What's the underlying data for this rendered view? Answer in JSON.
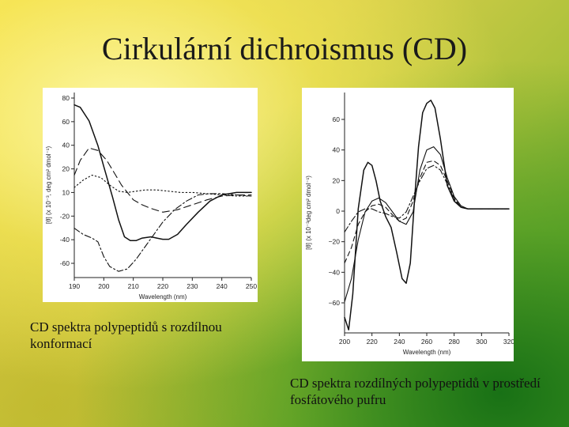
{
  "slide": {
    "title": "Cirkulární dichroismus (CD)",
    "caption_left": "CD spektra polypeptidů s rozdílnou konformací",
    "caption_right": "CD spektra rozdílných polypeptidů v prostředí fosfátového pufru"
  },
  "colors": {
    "background_light": "#f3de52",
    "background_dark": "#4e9b2a",
    "plot_background": "#ffffff",
    "line": "#111111"
  },
  "chart_data": [
    {
      "type": "line",
      "xlabel": "Wavelength (nm)",
      "ylabel": "[θ] (x 10⁻³, deg cm² dmol⁻¹)",
      "xlim": [
        190,
        250
      ],
      "ylim": [
        -65,
        85
      ],
      "xticks": [
        "190",
        "200",
        "210",
        "220",
        "230",
        "240",
        "250"
      ],
      "yticks": [
        "80",
        "60",
        "40",
        "20",
        "10",
        "-20",
        "-40",
        "-60"
      ],
      "series": [
        {
          "style": "solid",
          "x": [
            190,
            192,
            195,
            198,
            200,
            203,
            205,
            207,
            209,
            211,
            213,
            216,
            218,
            220,
            222,
            225,
            228,
            232,
            236,
            240,
            245,
            250
          ],
          "y": [
            75,
            73,
            62,
            42,
            25,
            0,
            -18,
            -32,
            -35,
            -35,
            -33,
            -32,
            -33,
            -34,
            -34,
            -30,
            -22,
            -12,
            -3,
            2,
            4,
            4
          ]
        },
        {
          "style": "long-dash",
          "x": [
            190,
            192,
            195,
            198,
            201,
            204,
            206,
            208,
            210,
            213,
            216,
            220,
            225,
            230,
            235,
            240,
            245,
            250
          ],
          "y": [
            18,
            30,
            40,
            38,
            30,
            18,
            10,
            4,
            -2,
            -6,
            -9,
            -12,
            -10,
            -6,
            -2,
            1,
            2,
            2
          ]
        },
        {
          "style": "dotted",
          "x": [
            190,
            193,
            196,
            199,
            202,
            205,
            208,
            211,
            214,
            218,
            222,
            226,
            230,
            235,
            240,
            245,
            250
          ],
          "y": [
            8,
            14,
            18,
            16,
            10,
            5,
            4,
            5,
            6,
            6,
            5,
            4,
            4,
            3,
            2,
            1,
            1
          ]
        },
        {
          "style": "dash-dot",
          "x": [
            190,
            193,
            196,
            198,
            200,
            202,
            205,
            208,
            211,
            214,
            217,
            220,
            224,
            228,
            232,
            236,
            240,
            245,
            250
          ],
          "y": [
            -25,
            -30,
            -33,
            -36,
            -48,
            -56,
            -60,
            -58,
            -50,
            -40,
            -30,
            -20,
            -10,
            -3,
            2,
            3,
            3,
            2,
            1
          ]
        }
      ]
    },
    {
      "type": "line",
      "xlabel": "Wavelength (nm)",
      "ylabel": "[θ] (x 10⁻³deg cm² dmol⁻¹)",
      "xlim": [
        200,
        320
      ],
      "ylim": [
        -80,
        75
      ],
      "xticks": [
        "200",
        "220",
        "240",
        "260",
        "280",
        "300",
        "320"
      ],
      "yticks": [
        "60",
        "40",
        "20",
        "0",
        "−20",
        "−40",
        "−60"
      ],
      "series": [
        {
          "style": "solid",
          "x": [
            200,
            203,
            206,
            210,
            214,
            217,
            220,
            223,
            226,
            230,
            234,
            238,
            242,
            245,
            248,
            251,
            254,
            257,
            260,
            263,
            266,
            270,
            275,
            280,
            285,
            290,
            300,
            310,
            320
          ],
          "y": [
            -70,
            -78,
            -55,
            0,
            25,
            30,
            28,
            18,
            5,
            -5,
            -12,
            -28,
            -45,
            -48,
            -35,
            5,
            40,
            62,
            68,
            70,
            65,
            45,
            15,
            5,
            1,
            0,
            0,
            0,
            0
          ]
        },
        {
          "style": "solid-thin",
          "x": [
            200,
            205,
            210,
            215,
            220,
            225,
            230,
            235,
            240,
            245,
            250,
            255,
            260,
            265,
            270,
            275,
            280,
            285,
            290,
            300,
            310,
            320
          ],
          "y": [
            -60,
            -45,
            -20,
            -2,
            5,
            7,
            4,
            -2,
            -8,
            -10,
            -2,
            25,
            38,
            40,
            35,
            20,
            8,
            2,
            0,
            0,
            0,
            0
          ]
        },
        {
          "style": "dashed",
          "x": [
            200,
            205,
            210,
            215,
            220,
            225,
            230,
            235,
            240,
            245,
            250,
            255,
            260,
            265,
            270,
            275,
            280,
            285,
            290,
            300,
            310,
            320
          ],
          "y": [
            -35,
            -25,
            -10,
            -2,
            2,
            3,
            1,
            -4,
            -8,
            -6,
            5,
            20,
            30,
            31,
            28,
            18,
            7,
            1,
            0,
            0,
            0,
            0
          ]
        },
        {
          "style": "dash-dot",
          "x": [
            200,
            205,
            210,
            215,
            220,
            225,
            230,
            235,
            240,
            245,
            250,
            255,
            260,
            265,
            270,
            275,
            280,
            285,
            290,
            300,
            310,
            320
          ],
          "y": [
            -15,
            -8,
            -2,
            0,
            0,
            -2,
            -3,
            -5,
            -6,
            -2,
            8,
            18,
            26,
            28,
            25,
            16,
            6,
            1,
            0,
            0,
            0,
            0
          ]
        }
      ]
    }
  ]
}
